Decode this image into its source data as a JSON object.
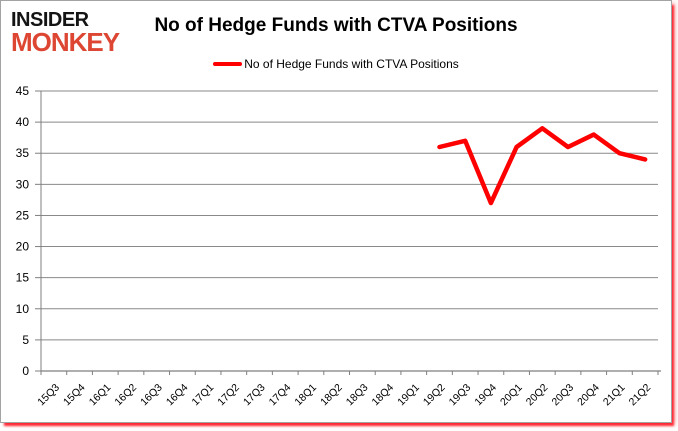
{
  "logo": {
    "line1": "INSIDER",
    "line2": "MONKEY"
  },
  "header": {
    "title": "No of Hedge Funds with CTVA Positions"
  },
  "legend": {
    "label": "No of Hedge Funds with CTVA Positions",
    "swatch_color": "#fe0000"
  },
  "colors": {
    "grid": "#898989",
    "axis": "#7f7f7f",
    "text": "#000000",
    "line": "#fe0000",
    "logo_accent": "#dd4632"
  },
  "chart_data": {
    "type": "line",
    "title": "No of Hedge Funds with CTVA Positions",
    "xlabel": "",
    "ylabel": "",
    "ylim": [
      0,
      45
    ],
    "ytick_step": 5,
    "grid": true,
    "legend_position": "top-center",
    "categories": [
      "15Q3",
      "15Q4",
      "16Q1",
      "16Q2",
      "16Q3",
      "16Q4",
      "17Q1",
      "17Q2",
      "17Q3",
      "17Q4",
      "18Q1",
      "18Q2",
      "18Q3",
      "18Q4",
      "19Q1",
      "19Q2",
      "19Q3",
      "19Q4",
      "20Q1",
      "20Q2",
      "20Q3",
      "20Q4",
      "21Q1",
      "21Q2"
    ],
    "series": [
      {
        "name": "No of Hedge Funds with CTVA Positions",
        "color": "#fe0000",
        "values": [
          null,
          null,
          null,
          null,
          null,
          null,
          null,
          null,
          null,
          null,
          null,
          null,
          null,
          null,
          null,
          36,
          37,
          27,
          36,
          39,
          36,
          38,
          35,
          34
        ]
      }
    ]
  }
}
